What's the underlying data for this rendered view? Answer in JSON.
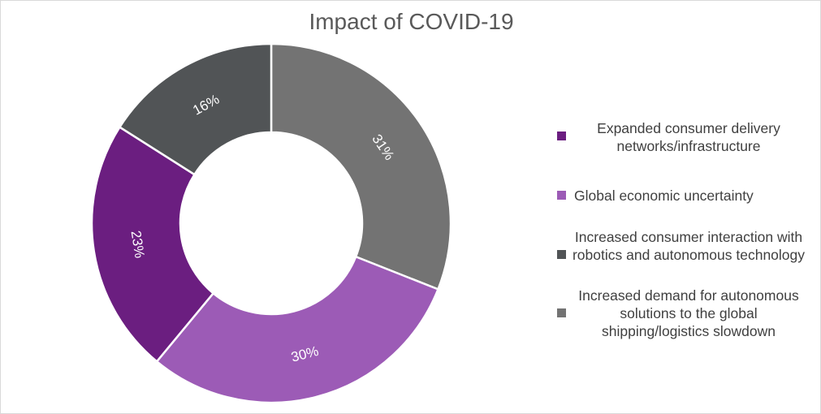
{
  "chart_data": {
    "type": "pie",
    "title": "Impact of COVID-19",
    "donut": true,
    "legend_position": "right",
    "slices": [
      {
        "label": "Expanded consumer delivery networks/infrastructure",
        "value": 23,
        "value_label": "23%",
        "color": "#6b1e80"
      },
      {
        "label": "Global economic uncertainty",
        "value": 30,
        "value_label": "30%",
        "color": "#9c5bb6"
      },
      {
        "label": "Increased consumer interaction with robotics and autonomous technology",
        "value": 16,
        "value_label": "16%",
        "color": "#515456"
      },
      {
        "label": "Increased demand for autonomous solutions to the global shipping/logistics slowdown",
        "value": 31,
        "value_label": "31%",
        "color": "#737373"
      }
    ]
  }
}
